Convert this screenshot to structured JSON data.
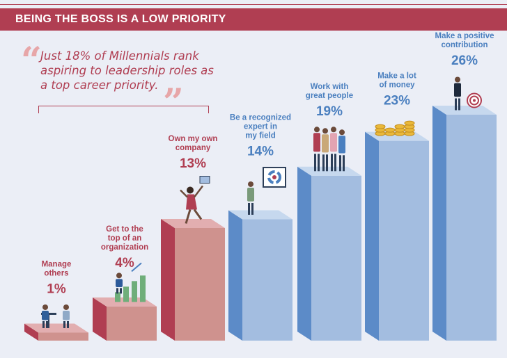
{
  "header": {
    "title": "BEING THE BOSS IS A LOW PRIORITY"
  },
  "quote": {
    "text": "Just 18% of Millennials rank aspiring to leadership roles as a top career priority."
  },
  "colors": {
    "red": "#b03e52",
    "blue": "#4a7fbf"
  },
  "chart_data": {
    "type": "bar",
    "categories": [
      "Manage others",
      "Get to the top of an organization",
      "Own my own company",
      "Be a recognized expert in my field",
      "Work with great people",
      "Make a lot of money",
      "Make a positive contribution"
    ],
    "category_lines": [
      [
        "Manage",
        "others"
      ],
      [
        "Get to the",
        "top of an",
        "organization"
      ],
      [
        "Own my own",
        "company"
      ],
      [
        "Be a recognized",
        "expert in",
        "my field"
      ],
      [
        "Work with",
        "great people"
      ],
      [
        "Make a lot",
        "of money"
      ],
      [
        "Make a positive",
        "contribution"
      ]
    ],
    "values": [
      1,
      4,
      13,
      14,
      19,
      23,
      26
    ],
    "value_labels": [
      "1%",
      "4%",
      "13%",
      "14%",
      "19%",
      "23%",
      "26%"
    ],
    "bar_colors": [
      "red",
      "red",
      "red",
      "blue",
      "blue",
      "blue",
      "blue"
    ],
    "icons": [
      "meeting-people-icon",
      "climbing-man-icon",
      "running-woman-icon",
      "presenter-icon",
      "group-of-people-icon",
      "coin-stacks-icon",
      "businessman-target-icon"
    ],
    "ylim": [
      0,
      26
    ]
  }
}
